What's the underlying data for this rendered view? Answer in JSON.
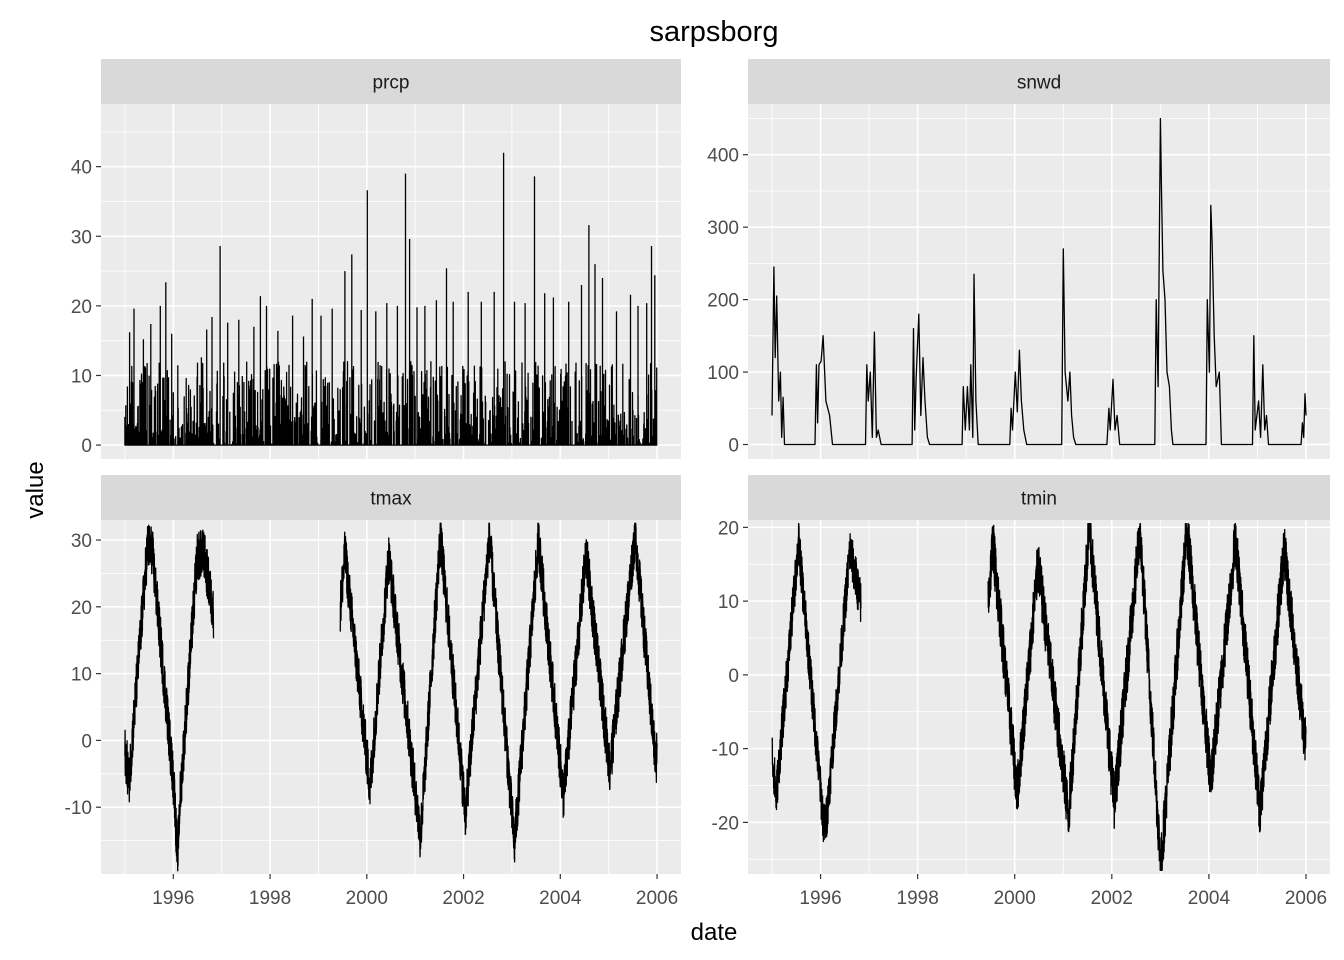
{
  "chart_data": {
    "type": "line",
    "title": "sarpsborg",
    "xlabel": "date",
    "ylabel": "value",
    "facet_layout": "2x2 grid, free y scales, shared x",
    "x_range": [
      "1995-01-01",
      "2006-01-01"
    ],
    "x_ticks": [
      "1996",
      "1998",
      "2000",
      "2002",
      "2004",
      "2006"
    ],
    "grid": true,
    "facets": [
      {
        "name": "prcp",
        "ylim": [
          -2,
          49
        ],
        "y_ticks": [
          "0",
          "10",
          "20",
          "30",
          "40"
        ],
        "spikes": [
          [
            "1995-02-05",
            16.2
          ],
          [
            "1995-03-10",
            19.6
          ],
          [
            "1995-05-20",
            15.2
          ],
          [
            "1995-07-15",
            17.4
          ],
          [
            "1995-09-25",
            20.0
          ],
          [
            "1995-11-05",
            23.4
          ],
          [
            "1995-12-20",
            16.0
          ],
          [
            "1996-05-10",
            8.0
          ],
          [
            "1996-08-01",
            12.6
          ],
          [
            "1996-09-10",
            16.6
          ],
          [
            "1996-10-20",
            18.4
          ],
          [
            "1996-12-20",
            28.6
          ],
          [
            "1997-02-15",
            17.6
          ],
          [
            "1997-05-10",
            18.0
          ],
          [
            "1997-09-01",
            17.0
          ],
          [
            "1997-10-20",
            21.4
          ],
          [
            "1997-12-05",
            20.0
          ],
          [
            "1998-03-01",
            16.4
          ],
          [
            "1998-06-20",
            18.6
          ],
          [
            "1998-09-10",
            15.6
          ],
          [
            "1998-11-15",
            21.0
          ],
          [
            "1999-01-20",
            18.6
          ],
          [
            "1999-04-15",
            19.6
          ],
          [
            "1999-07-20",
            25.0
          ],
          [
            "1999-09-10",
            27.4
          ],
          [
            "1999-11-20",
            19.4
          ],
          [
            "2000-01-05",
            36.6
          ],
          [
            "2000-03-10",
            19.2
          ],
          [
            "2000-06-01",
            20.4
          ],
          [
            "2000-08-20",
            20.0
          ],
          [
            "2000-10-20",
            39.0
          ],
          [
            "2000-11-20",
            29.6
          ],
          [
            "2001-01-15",
            19.8
          ],
          [
            "2001-03-15",
            20.0
          ],
          [
            "2001-06-10",
            20.8
          ],
          [
            "2001-08-25",
            25.4
          ],
          [
            "2001-10-15",
            20.6
          ],
          [
            "2002-02-05",
            22.0
          ],
          [
            "2002-05-15",
            20.6
          ],
          [
            "2002-08-20",
            22.0
          ],
          [
            "2002-10-30",
            42.0
          ],
          [
            "2003-01-20",
            20.6
          ],
          [
            "2003-04-10",
            20.4
          ],
          [
            "2003-06-20",
            38.6
          ],
          [
            "2003-09-05",
            21.8
          ],
          [
            "2003-11-10",
            21.2
          ],
          [
            "2004-03-05",
            20.6
          ],
          [
            "2004-06-10",
            23.0
          ],
          [
            "2004-08-05",
            31.6
          ],
          [
            "2004-09-20",
            26.0
          ],
          [
            "2004-11-15",
            24.0
          ],
          [
            "2005-03-01",
            19.2
          ],
          [
            "2005-06-15",
            21.6
          ],
          [
            "2005-08-10",
            20.0
          ],
          [
            "2005-10-15",
            20.4
          ],
          [
            "2005-11-20",
            28.6
          ],
          [
            "2005-12-15",
            24.4
          ]
        ]
      },
      {
        "name": "snwd",
        "ylim": [
          -20,
          470
        ],
        "y_ticks": [
          "0",
          "100",
          "200",
          "300",
          "400"
        ],
        "points": [
          [
            "1995-01-01",
            40
          ],
          [
            "1995-01-15",
            245
          ],
          [
            "1995-01-25",
            120
          ],
          [
            "1995-02-05",
            205
          ],
          [
            "1995-02-20",
            60
          ],
          [
            "1995-03-05",
            100
          ],
          [
            "1995-03-15",
            10
          ],
          [
            "1995-03-25",
            65
          ],
          [
            "1995-04-05",
            0
          ],
          [
            "1995-11-20",
            0
          ],
          [
            "1995-12-01",
            110
          ],
          [
            "1995-12-10",
            30
          ],
          [
            "1995-12-20",
            110
          ],
          [
            "1996-01-05",
            115
          ],
          [
            "1996-01-20",
            150
          ],
          [
            "1996-02-10",
            60
          ],
          [
            "1996-03-10",
            40
          ],
          [
            "1996-04-01",
            0
          ],
          [
            "1996-12-05",
            0
          ],
          [
            "1996-12-15",
            110
          ],
          [
            "1996-12-25",
            60
          ],
          [
            "1997-01-10",
            100
          ],
          [
            "1997-01-25",
            10
          ],
          [
            "1997-02-10",
            155
          ],
          [
            "1997-02-25",
            10
          ],
          [
            "1997-03-10",
            20
          ],
          [
            "1997-04-01",
            0
          ],
          [
            "1997-11-20",
            0
          ],
          [
            "1997-12-01",
            160
          ],
          [
            "1997-12-10",
            20
          ],
          [
            "1997-12-20",
            90
          ],
          [
            "1998-01-10",
            180
          ],
          [
            "1998-01-25",
            40
          ],
          [
            "1998-02-10",
            120
          ],
          [
            "1998-02-25",
            60
          ],
          [
            "1998-03-15",
            10
          ],
          [
            "1998-04-01",
            0
          ],
          [
            "1998-12-01",
            0
          ],
          [
            "1998-12-10",
            80
          ],
          [
            "1998-12-25",
            20
          ],
          [
            "1999-01-10",
            80
          ],
          [
            "1999-01-25",
            20
          ],
          [
            "1999-02-05",
            110
          ],
          [
            "1999-02-20",
            10
          ],
          [
            "1999-03-01",
            235
          ],
          [
            "1999-03-15",
            60
          ],
          [
            "1999-04-01",
            0
          ],
          [
            "1999-11-25",
            0
          ],
          [
            "1999-12-05",
            50
          ],
          [
            "1999-12-15",
            20
          ],
          [
            "2000-01-05",
            100
          ],
          [
            "2000-01-20",
            45
          ],
          [
            "2000-02-05",
            130
          ],
          [
            "2000-02-20",
            60
          ],
          [
            "2000-03-10",
            20
          ],
          [
            "2000-04-01",
            0
          ],
          [
            "2000-12-20",
            0
          ],
          [
            "2001-01-01",
            270
          ],
          [
            "2001-01-15",
            100
          ],
          [
            "2001-02-05",
            60
          ],
          [
            "2001-02-20",
            100
          ],
          [
            "2001-03-05",
            40
          ],
          [
            "2001-03-20",
            10
          ],
          [
            "2001-04-05",
            0
          ],
          [
            "2001-11-25",
            0
          ],
          [
            "2001-12-10",
            50
          ],
          [
            "2001-12-20",
            20
          ],
          [
            "2002-01-10",
            90
          ],
          [
            "2002-01-25",
            20
          ],
          [
            "2002-02-10",
            40
          ],
          [
            "2002-03-01",
            0
          ],
          [
            "2002-11-20",
            0
          ],
          [
            "2002-12-01",
            200
          ],
          [
            "2002-12-15",
            80
          ],
          [
            "2003-01-01",
            450
          ],
          [
            "2003-01-10",
            350
          ],
          [
            "2003-01-20",
            240
          ],
          [
            "2003-02-05",
            200
          ],
          [
            "2003-02-20",
            100
          ],
          [
            "2003-03-10",
            80
          ],
          [
            "2003-03-25",
            20
          ],
          [
            "2003-04-05",
            0
          ],
          [
            "2003-12-10",
            0
          ],
          [
            "2003-12-20",
            200
          ],
          [
            "2004-01-05",
            100
          ],
          [
            "2004-01-15",
            330
          ],
          [
            "2004-01-25",
            280
          ],
          [
            "2004-02-10",
            150
          ],
          [
            "2004-02-25",
            80
          ],
          [
            "2004-03-20",
            100
          ],
          [
            "2004-04-05",
            0
          ],
          [
            "2004-11-25",
            0
          ],
          [
            "2004-12-05",
            150
          ],
          [
            "2004-12-15",
            20
          ],
          [
            "2005-01-10",
            60
          ],
          [
            "2005-01-25",
            10
          ],
          [
            "2005-02-10",
            110
          ],
          [
            "2005-02-25",
            20
          ],
          [
            "2005-03-10",
            40
          ],
          [
            "2005-03-25",
            0
          ],
          [
            "2005-11-25",
            0
          ],
          [
            "2005-12-05",
            30
          ],
          [
            "2005-12-15",
            10
          ],
          [
            "2005-12-25",
            70
          ],
          [
            "2006-01-01",
            40
          ]
        ]
      },
      {
        "name": "tmax",
        "ylim": [
          -20,
          33
        ],
        "y_ticks": [
          "-10",
          "0",
          "10",
          "20",
          "30"
        ],
        "segments": [
          {
            "start": "1995-01-01",
            "end": "1996-10-31",
            "low_points": [
              [
                "1995-02-01",
                -6
              ],
              [
                "1996-01-10",
                -8
              ],
              [
                "1996-02-01",
                -18
              ],
              [
                "1996-02-20",
                -9
              ]
            ],
            "high_points": [
              [
                "1995-06-20",
                29
              ],
              [
                "1995-07-25",
                28.5
              ],
              [
                "1996-06-30",
                27.5
              ],
              [
                "1996-08-20",
                28
              ]
            ]
          },
          {
            "start": "1999-06-15",
            "end": "2006-01-01",
            "low_points": [
              [
                "2000-01-25",
                -7
              ],
              [
                "2001-02-10",
                -14.5
              ],
              [
                "2002-01-15",
                -11
              ],
              [
                "2003-01-20",
                -15.5
              ],
              [
                "2004-01-25",
                -8.5
              ],
              [
                "2005-01-10",
                -4.5
              ],
              [
                "2005-12-25",
                -4
              ]
            ],
            "high_points": [
              [
                "1999-07-20",
                28
              ],
              [
                "2000-06-15",
                27.5
              ],
              [
                "2001-07-10",
                30.5
              ],
              [
                "2002-07-15",
                30.5
              ],
              [
                "2003-07-20",
                30
              ],
              [
                "2004-07-15",
                28
              ],
              [
                "2005-07-20",
                31
              ]
            ]
          }
        ]
      },
      {
        "name": "tmin",
        "ylim": [
          -27,
          21
        ],
        "y_ticks": [
          "-20",
          "-10",
          "0",
          "10",
          "20"
        ],
        "segments": [
          {
            "start": "1995-01-01",
            "end": "1996-10-31",
            "low_points": [
              [
                "1995-02-01",
                -16.5
              ],
              [
                "1996-01-25",
                -20.5
              ],
              [
                "1996-02-15",
                -19.5
              ]
            ],
            "high_points": [
              [
                "1995-07-20",
                18
              ],
              [
                "1996-08-10",
                17
              ]
            ]
          },
          {
            "start": "1999-06-15",
            "end": "2006-01-01",
            "low_points": [
              [
                "2000-01-20",
                -16
              ],
              [
                "2001-02-10",
                -19
              ],
              [
                "2002-01-20",
                -17.5
              ],
              [
                "2003-01-05",
                -26
              ],
              [
                "2004-01-15",
                -14.5
              ],
              [
                "2005-01-20",
                -18.5
              ],
              [
                "2005-12-25",
                -9
              ]
            ],
            "high_points": [
              [
                "1999-07-20",
                18
              ],
              [
                "2000-06-25",
                15
              ],
              [
                "2001-07-15",
                20
              ],
              [
                "2002-08-01",
                19.5
              ],
              [
                "2003-07-20",
                20
              ],
              [
                "2004-07-20",
                18.5
              ],
              [
                "2005-07-20",
                17
              ]
            ]
          }
        ]
      }
    ]
  }
}
